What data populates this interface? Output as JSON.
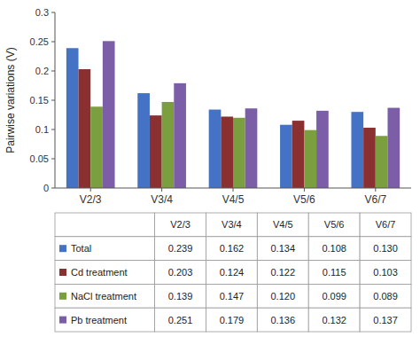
{
  "chart_data": {
    "type": "bar",
    "y_label": "Pairwise variations (V)",
    "categories": [
      "V2/3",
      "V3/4",
      "V4/5",
      "V5/6",
      "V6/7"
    ],
    "series": [
      {
        "name": "Total",
        "color": "#4472C4",
        "values": [
          0.239,
          0.162,
          0.134,
          0.108,
          0.13
        ],
        "value_labels": [
          "0.239",
          "0.162",
          "0.134",
          "0.108",
          "0.130"
        ]
      },
      {
        "name": "Cd treatment",
        "color": "#8B3030",
        "values": [
          0.203,
          0.124,
          0.122,
          0.115,
          0.103
        ],
        "value_labels": [
          "0.203",
          "0.124",
          "0.122",
          "0.115",
          "0.103"
        ]
      },
      {
        "name": "NaCl treatment",
        "color": "#7B9E3E",
        "values": [
          0.139,
          0.147,
          0.12,
          0.099,
          0.089
        ],
        "value_labels": [
          "0.139",
          "0.147",
          "0.120",
          "0.099",
          "0.089"
        ]
      },
      {
        "name": "Pb treatment",
        "color": "#7B5EA7",
        "values": [
          0.251,
          0.179,
          0.136,
          0.132,
          0.137
        ],
        "value_labels": [
          "0.251",
          "0.179",
          "0.136",
          "0.132",
          "0.137"
        ]
      }
    ],
    "ylim": [
      0,
      0.3
    ],
    "yticks": [
      0,
      0.05,
      0.1,
      0.15,
      0.2,
      0.25,
      0.3
    ],
    "grid": false
  }
}
